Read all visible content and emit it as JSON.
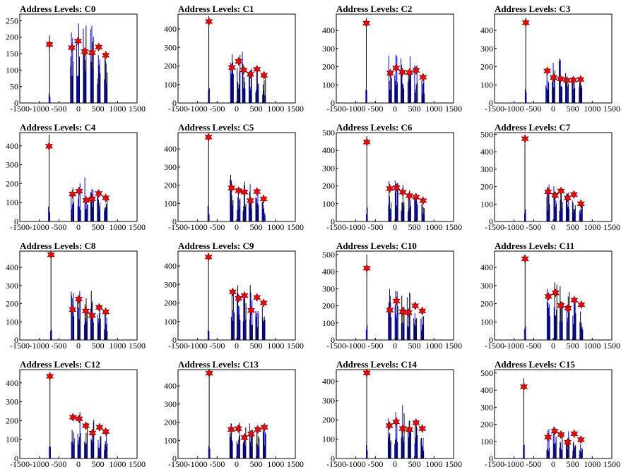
{
  "figure": {
    "title_prefix": "Address Levels: ",
    "x_ticks": [
      -1500,
      -1000,
      -500,
      0,
      500,
      1000,
      1500
    ],
    "xlim": [
      -1500,
      1500
    ],
    "colors": {
      "histogram_blue": "#0000ff",
      "histogram_black": "#000000",
      "marker_fill": "#ff0000",
      "marker_edge": "#8b0000"
    }
  },
  "chart_data": [
    {
      "type": "bar",
      "title": "Address Levels: C0",
      "ylim": [
        0,
        270
      ],
      "y_ticks": [
        0,
        50,
        100,
        150,
        200,
        250
      ],
      "levels_x": [
        -740,
        -170,
        -10,
        160,
        350,
        520,
        700
      ],
      "levels_y": [
        178,
        168,
        188,
        156,
        153,
        170,
        145
      ],
      "bin_peaks": [
        205,
        255,
        258,
        240,
        250,
        175,
        150
      ]
    },
    {
      "type": "bar",
      "title": "Address Levels: C1",
      "ylim": [
        0,
        480
      ],
      "y_ticks": [
        0,
        100,
        200,
        300,
        400
      ],
      "levels_x": [
        -710,
        -120,
        50,
        180,
        350,
        520,
        700
      ],
      "levels_y": [
        440,
        192,
        225,
        178,
        155,
        182,
        150
      ],
      "bin_peaks": [
        470,
        320,
        305,
        290,
        250,
        200,
        160
      ]
    },
    {
      "type": "bar",
      "title": "Address Levels: C2",
      "ylim": [
        0,
        490
      ],
      "y_ticks": [
        0,
        100,
        200,
        300,
        400
      ],
      "levels_x": [
        -730,
        -120,
        30,
        190,
        370,
        540,
        720
      ],
      "levels_y": [
        440,
        165,
        193,
        170,
        168,
        180,
        142
      ],
      "bin_peaks": [
        470,
        285,
        280,
        255,
        260,
        210,
        150
      ]
    },
    {
      "type": "bar",
      "title": "Address Levels: C3",
      "ylim": [
        0,
        490
      ],
      "y_ticks": [
        0,
        100,
        200,
        300,
        400
      ],
      "levels_x": [
        -700,
        -150,
        10,
        190,
        350,
        520,
        700
      ],
      "levels_y": [
        443,
        177,
        140,
        133,
        125,
        126,
        130
      ],
      "bin_peaks": [
        470,
        235,
        250,
        250,
        170,
        150,
        140
      ]
    },
    {
      "type": "bar",
      "title": "Address Levels: C4",
      "ylim": [
        0,
        470
      ],
      "y_ticks": [
        0,
        100,
        200,
        300,
        400
      ],
      "levels_x": [
        -750,
        -150,
        20,
        200,
        350,
        520,
        700
      ],
      "levels_y": [
        398,
        145,
        160,
        112,
        120,
        148,
        125
      ],
      "bin_peaks": [
        460,
        220,
        220,
        235,
        210,
        180,
        140
      ]
    },
    {
      "type": "bar",
      "title": "Address Levels: C5",
      "ylim": [
        0,
        490
      ],
      "y_ticks": [
        0,
        100,
        200,
        300,
        400
      ],
      "levels_x": [
        -720,
        -130,
        50,
        200,
        350,
        520,
        690
      ],
      "levels_y": [
        465,
        185,
        170,
        162,
        115,
        165,
        125
      ],
      "bin_peaks": [
        475,
        260,
        220,
        225,
        210,
        160,
        110
      ]
    },
    {
      "type": "bar",
      "title": "Address Levels: C6",
      "ylim": [
        0,
        500
      ],
      "y_ticks": [
        0,
        100,
        200,
        300,
        400,
        500
      ],
      "levels_x": [
        -720,
        -130,
        40,
        200,
        370,
        540,
        720
      ],
      "levels_y": [
        447,
        185,
        190,
        165,
        145,
        137,
        117
      ],
      "bin_peaks": [
        480,
        245,
        240,
        225,
        190,
        170,
        130
      ]
    },
    {
      "type": "bar",
      "title": "Address Levels: C7",
      "ylim": [
        0,
        510
      ],
      "y_ticks": [
        0,
        100,
        200,
        300,
        400,
        500
      ],
      "levels_x": [
        -720,
        -130,
        50,
        200,
        370,
        530,
        710
      ],
      "levels_y": [
        475,
        170,
        150,
        175,
        135,
        155,
        102
      ],
      "bin_peaks": [
        490,
        230,
        230,
        220,
        185,
        160,
        110
      ]
    },
    {
      "type": "bar",
      "title": "Address Levels: C8",
      "ylim": [
        0,
        490
      ],
      "y_ticks": [
        0,
        100,
        200,
        300,
        400
      ],
      "levels_x": [
        -700,
        -150,
        10,
        190,
        350,
        530,
        700
      ],
      "levels_y": [
        470,
        168,
        225,
        160,
        135,
        180,
        155
      ],
      "bin_peaks": [
        475,
        310,
        300,
        295,
        290,
        200,
        160
      ]
    },
    {
      "type": "bar",
      "title": "Address Levels: C9",
      "ylim": [
        0,
        480
      ],
      "y_ticks": [
        0,
        100,
        200,
        300,
        400
      ],
      "levels_x": [
        -720,
        -100,
        50,
        200,
        370,
        520,
        690
      ],
      "levels_y": [
        448,
        260,
        225,
        240,
        160,
        230,
        200
      ],
      "bin_peaks": [
        470,
        360,
        350,
        330,
        300,
        240,
        200
      ]
    },
    {
      "type": "bar",
      "title": "Address Levels: C10",
      "ylim": [
        0,
        520
      ],
      "y_ticks": [
        0,
        100,
        200,
        300,
        400,
        500
      ],
      "levels_x": [
        -720,
        -130,
        40,
        200,
        350,
        520,
        700
      ],
      "levels_y": [
        420,
        175,
        228,
        165,
        160,
        200,
        170
      ],
      "bin_peaks": [
        500,
        330,
        320,
        300,
        280,
        210,
        175
      ]
    },
    {
      "type": "bar",
      "title": "Address Levels: C11",
      "ylim": [
        0,
        490
      ],
      "y_ticks": [
        0,
        100,
        200,
        300,
        400
      ],
      "levels_x": [
        -720,
        -120,
        60,
        200,
        380,
        540,
        720
      ],
      "levels_y": [
        448,
        240,
        260,
        190,
        175,
        220,
        195
      ],
      "bin_peaks": [
        470,
        340,
        330,
        310,
        290,
        240,
        200
      ]
    },
    {
      "type": "bar",
      "title": "Address Levels: C12",
      "ylim": [
        0,
        470
      ],
      "y_ticks": [
        0,
        100,
        200,
        300,
        400
      ],
      "levels_x": [
        -730,
        -140,
        20,
        190,
        360,
        540,
        700
      ],
      "levels_y": [
        435,
        218,
        210,
        173,
        135,
        165,
        142
      ],
      "bin_peaks": [
        455,
        280,
        280,
        260,
        240,
        190,
        150
      ]
    },
    {
      "type": "bar",
      "title": "Address Levels: C13",
      "ylim": [
        0,
        490
      ],
      "y_ticks": [
        0,
        100,
        200,
        300,
        400
      ],
      "levels_x": [
        -700,
        -140,
        40,
        200,
        370,
        540,
        710
      ],
      "levels_y": [
        470,
        160,
        165,
        115,
        135,
        160,
        172
      ],
      "bin_peaks": [
        480,
        250,
        250,
        225,
        200,
        180,
        175
      ]
    },
    {
      "type": "bar",
      "title": "Address Levels: C14",
      "ylim": [
        0,
        460
      ],
      "y_ticks": [
        0,
        100,
        200,
        300,
        400
      ],
      "levels_x": [
        -720,
        -140,
        30,
        200,
        370,
        540,
        700
      ],
      "levels_y": [
        443,
        170,
        190,
        155,
        150,
        185,
        155
      ],
      "bin_peaks": [
        455,
        260,
        245,
        290,
        215,
        190,
        155
      ]
    },
    {
      "type": "bar",
      "title": "Address Levels: C15",
      "ylim": [
        0,
        520
      ],
      "y_ticks": [
        0,
        100,
        200,
        300,
        400,
        500
      ],
      "levels_x": [
        -750,
        -130,
        40,
        200,
        370,
        540,
        710
      ],
      "levels_y": [
        420,
        125,
        160,
        140,
        95,
        145,
        110
      ],
      "bin_peaks": [
        470,
        175,
        190,
        165,
        175,
        120,
        110
      ]
    }
  ]
}
